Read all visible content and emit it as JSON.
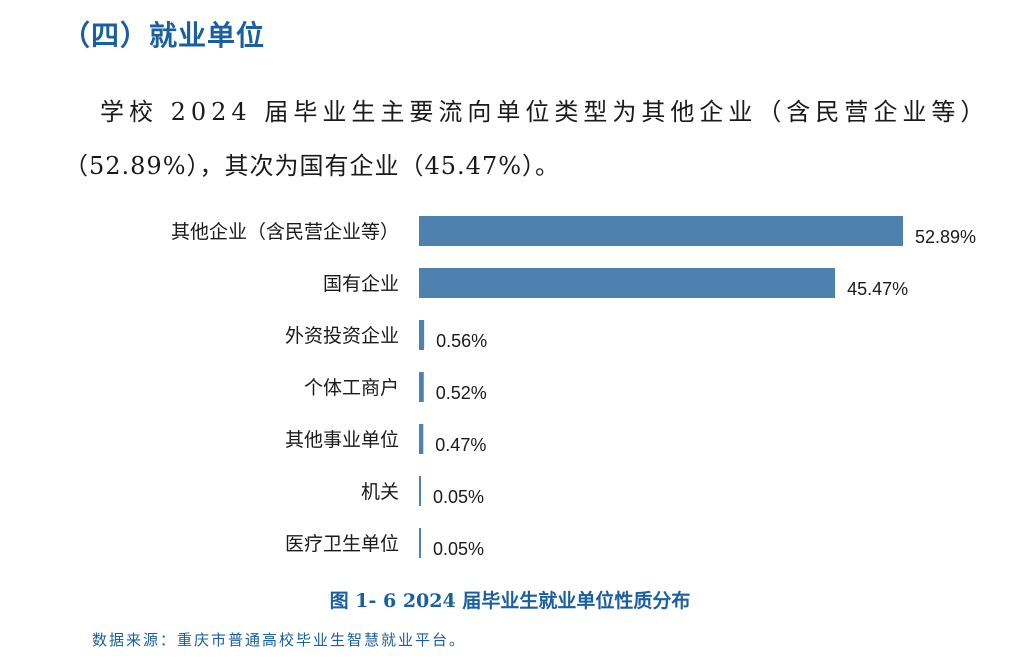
{
  "section": {
    "heading": "（四）就业单位"
  },
  "paragraph": {
    "line1": "学校 2024 届毕业生主要流向单位类型为其他企业（含民营企业等）",
    "line2": "（52.89%），其次为国有企业（45.47%）。"
  },
  "chart_data": {
    "type": "bar",
    "orientation": "horizontal",
    "title": "图 1- 6 2024 届毕业生就业单位性质分布",
    "categories": [
      "其他企业（含民营企业等）",
      "国有企业",
      "外资投资企业",
      "个体工商户",
      "其他事业单位",
      "机关",
      "医疗卫生单位"
    ],
    "values": [
      52.89,
      45.47,
      0.56,
      0.52,
      0.47,
      0.05,
      0.05
    ],
    "value_labels": [
      "52.89%",
      "45.47%",
      "0.56%",
      "0.52%",
      "0.47%",
      "0.05%",
      "0.05%"
    ],
    "bar_color": "#4e81ad",
    "xlim": [
      0,
      55
    ],
    "grid": false,
    "legend": "none"
  },
  "footer": {
    "source": "数据来源：重庆市普通高校毕业生智慧就业平台。"
  },
  "colors": {
    "accent": "#1a5fa0",
    "bar": "#4e81ad"
  }
}
